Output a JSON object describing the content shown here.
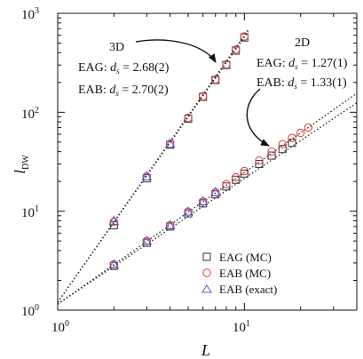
{
  "chart_data": {
    "type": "scatter",
    "xlabel": "L",
    "ylabel_main": "l",
    "ylabel_sub": "DW",
    "x_scale": "log",
    "y_scale": "log",
    "xlim": [
      1,
      40
    ],
    "ylim": [
      1,
      1000
    ],
    "x_ticks": [
      {
        "value": 1,
        "base": "10",
        "exp": "0"
      },
      {
        "value": 10,
        "base": "10",
        "exp": "1"
      }
    ],
    "y_ticks": [
      {
        "value": 1,
        "base": "10",
        "exp": "0"
      },
      {
        "value": 10,
        "base": "10",
        "exp": "1"
      },
      {
        "value": 100,
        "base": "10",
        "exp": "2"
      },
      {
        "value": 1000,
        "base": "10",
        "exp": "3"
      }
    ],
    "grid": false,
    "legend_position": "bottom-right",
    "annotations": {
      "label_3d": "3D",
      "label_2d": "2D",
      "eag_3d": {
        "prefix": "EAG: ",
        "d": "d",
        "sub": "s",
        "value": " = 2.68(2)"
      },
      "eab_3d": {
        "prefix": "EAB: ",
        "d": "d",
        "sub": "s",
        "value": " = 2.70(2)"
      },
      "eag_2d": {
        "prefix": "EAG: ",
        "d": "d",
        "sub": "s",
        "value": " = 1.27(1)"
      },
      "eab_2d": {
        "prefix": "EAB: ",
        "d": "d",
        "sub": "s",
        "value": " = 1.33(1)"
      }
    },
    "fits": [
      {
        "prefactor": 1.2,
        "exponent": 2.68,
        "x_range": [
          1,
          10.5
        ]
      },
      {
        "prefactor": 1.2,
        "exponent": 2.7,
        "x_range": [
          1,
          10.5
        ]
      },
      {
        "prefactor": 1.15,
        "exponent": 1.27,
        "x_range": [
          1,
          40
        ]
      },
      {
        "prefactor": 1.15,
        "exponent": 1.33,
        "x_range": [
          1,
          40
        ]
      }
    ],
    "series": [
      {
        "name": "EAG (MC)",
        "marker": "square",
        "color": "#333333",
        "x": [
          2,
          3,
          4,
          5,
          6,
          7,
          8,
          9,
          10,
          2,
          3,
          4,
          5,
          6,
          7,
          8,
          9,
          10,
          12,
          14,
          16,
          18
        ],
        "y": [
          7.2,
          21.5,
          47,
          86,
          143,
          212,
          300,
          420,
          570,
          2.8,
          4.8,
          7.0,
          9.5,
          12.0,
          14.8,
          17.8,
          20.8,
          24.0,
          30.0,
          36.5,
          42.5,
          49.0
        ]
      },
      {
        "name": "EAB (MC)",
        "marker": "circle",
        "color": "#e8383a",
        "x": [
          2,
          3,
          4,
          5,
          6,
          7,
          8,
          9,
          10,
          2,
          3,
          4,
          5,
          6,
          7,
          8,
          9,
          10,
          12,
          14,
          16,
          18,
          20,
          22
        ],
        "y": [
          7.8,
          22.5,
          48,
          88,
          145,
          215,
          305,
          430,
          585,
          2.9,
          5.0,
          7.2,
          9.9,
          12.5,
          15.5,
          18.8,
          22.0,
          25.5,
          32.5,
          40.0,
          47.5,
          55.0,
          62.0,
          70.0
        ]
      },
      {
        "name": "EAB (exact)",
        "marker": "triangle",
        "color": "#5a5ad6",
        "x": [
          2,
          3,
          4,
          2,
          3,
          4,
          5,
          6,
          7
        ],
        "y": [
          8.0,
          22.5,
          48,
          2.9,
          5.0,
          7.2,
          9.9,
          12.6,
          15.6
        ]
      }
    ]
  }
}
